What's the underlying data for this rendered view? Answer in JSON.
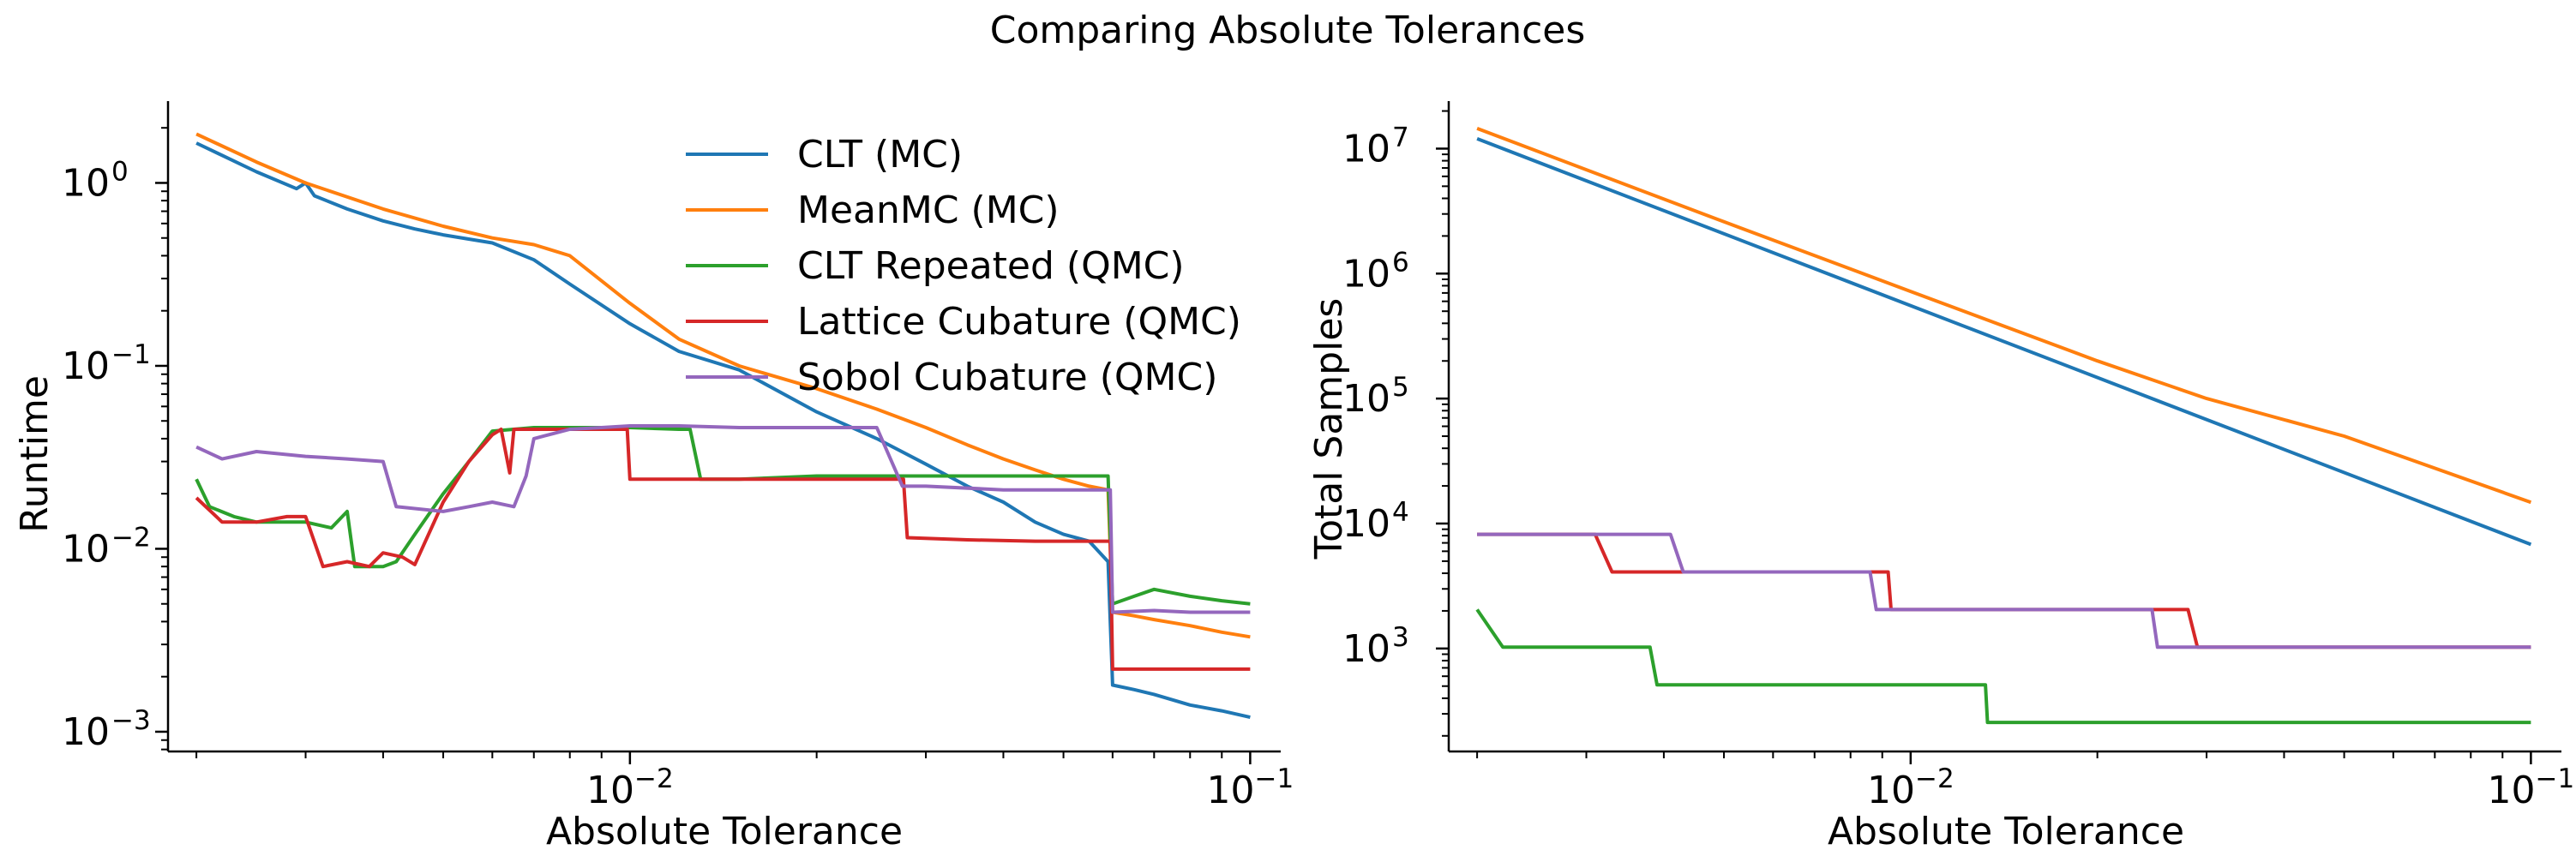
{
  "figure": {
    "title": "Comparing Absolute Tolerances"
  },
  "chart_data": [
    {
      "type": "line",
      "xlabel": "Absolute Tolerance",
      "ylabel": "Runtime",
      "xscale": "log",
      "yscale": "log",
      "xlim": [
        0.0018,
        0.112
      ],
      "ylim": [
        0.00078,
        2.8
      ],
      "xticks": [
        {
          "value": 0.01,
          "base": "10",
          "exp": "−2"
        },
        {
          "value": 0.1,
          "base": "10",
          "exp": "−1"
        }
      ],
      "yticks": [
        {
          "value": 0.001,
          "base": "10",
          "exp": "−3"
        },
        {
          "value": 0.01,
          "base": "10",
          "exp": "−2"
        },
        {
          "value": 0.1,
          "base": "10",
          "exp": "−1"
        },
        {
          "value": 1,
          "base": "10",
          "exp": "0"
        }
      ],
      "legend": "top-center",
      "grid": false,
      "series": [
        {
          "name": "CLT (MC)",
          "color": "#1f77b4",
          "x": [
            0.002,
            0.0025,
            0.0029,
            0.003,
            0.0031,
            0.0035,
            0.004,
            0.0045,
            0.005,
            0.006,
            0.007,
            0.008,
            0.01,
            0.012,
            0.015,
            0.02,
            0.025,
            0.03,
            0.035,
            0.04,
            0.045,
            0.05,
            0.055,
            0.059,
            0.06,
            0.065,
            0.07,
            0.08,
            0.09,
            0.1
          ],
          "y": [
            1.65,
            1.15,
            0.93,
            1.0,
            0.85,
            0.72,
            0.62,
            0.56,
            0.52,
            0.47,
            0.38,
            0.28,
            0.17,
            0.12,
            0.095,
            0.056,
            0.04,
            0.029,
            0.022,
            0.018,
            0.014,
            0.012,
            0.011,
            0.0085,
            0.0018,
            0.0017,
            0.0016,
            0.0014,
            0.0013,
            0.0012
          ]
        },
        {
          "name": "MeanMC (MC)",
          "color": "#ff7f0e",
          "x": [
            0.002,
            0.0025,
            0.003,
            0.004,
            0.005,
            0.006,
            0.007,
            0.008,
            0.01,
            0.012,
            0.015,
            0.02,
            0.025,
            0.03,
            0.035,
            0.04,
            0.045,
            0.05,
            0.055,
            0.059,
            0.06,
            0.065,
            0.07,
            0.08,
            0.09,
            0.1
          ],
          "y": [
            1.85,
            1.3,
            1.0,
            0.72,
            0.58,
            0.5,
            0.46,
            0.4,
            0.22,
            0.14,
            0.1,
            0.075,
            0.058,
            0.046,
            0.037,
            0.031,
            0.027,
            0.024,
            0.022,
            0.021,
            0.0045,
            0.0043,
            0.0041,
            0.0038,
            0.0035,
            0.0033
          ]
        },
        {
          "name": "CLT Repeated (QMC)",
          "color": "#2ca02c",
          "x": [
            0.002,
            0.0021,
            0.0023,
            0.0025,
            0.003,
            0.0033,
            0.0035,
            0.0036,
            0.004,
            0.0042,
            0.0045,
            0.005,
            0.0055,
            0.006,
            0.007,
            0.008,
            0.01,
            0.012,
            0.0125,
            0.013,
            0.015,
            0.02,
            0.025,
            0.03,
            0.04,
            0.05,
            0.059,
            0.06,
            0.065,
            0.07,
            0.08,
            0.09,
            0.1
          ],
          "y": [
            0.024,
            0.017,
            0.015,
            0.014,
            0.014,
            0.013,
            0.016,
            0.008,
            0.008,
            0.0085,
            0.012,
            0.02,
            0.03,
            0.044,
            0.046,
            0.046,
            0.046,
            0.045,
            0.045,
            0.024,
            0.024,
            0.025,
            0.025,
            0.025,
            0.025,
            0.025,
            0.025,
            0.005,
            0.0055,
            0.006,
            0.0055,
            0.0052,
            0.005
          ]
        },
        {
          "name": "Lattice Cubature (QMC)",
          "color": "#d62728",
          "x": [
            0.002,
            0.0022,
            0.0025,
            0.0028,
            0.003,
            0.0032,
            0.0035,
            0.0038,
            0.004,
            0.0043,
            0.0045,
            0.005,
            0.0055,
            0.006,
            0.0062,
            0.0064,
            0.0065,
            0.007,
            0.008,
            0.0099,
            0.01,
            0.015,
            0.02,
            0.025,
            0.0276,
            0.028,
            0.035,
            0.045,
            0.055,
            0.0595,
            0.06,
            0.07,
            0.08,
            0.1
          ],
          "y": [
            0.019,
            0.014,
            0.014,
            0.015,
            0.015,
            0.008,
            0.0085,
            0.008,
            0.0095,
            0.009,
            0.0082,
            0.018,
            0.03,
            0.042,
            0.045,
            0.026,
            0.045,
            0.045,
            0.045,
            0.045,
            0.024,
            0.024,
            0.024,
            0.024,
            0.024,
            0.0115,
            0.0112,
            0.011,
            0.011,
            0.011,
            0.0022,
            0.0022,
            0.0022,
            0.0022
          ]
        },
        {
          "name": "Sobol Cubature (QMC)",
          "color": "#9467bd",
          "x": [
            0.002,
            0.0022,
            0.0025,
            0.003,
            0.0035,
            0.004,
            0.0042,
            0.005,
            0.0055,
            0.006,
            0.0065,
            0.0068,
            0.007,
            0.008,
            0.009,
            0.01,
            0.012,
            0.015,
            0.02,
            0.025,
            0.0275,
            0.03,
            0.04,
            0.05,
            0.0595,
            0.06,
            0.07,
            0.08,
            0.09,
            0.1
          ],
          "y": [
            0.036,
            0.031,
            0.034,
            0.032,
            0.031,
            0.03,
            0.017,
            0.016,
            0.017,
            0.018,
            0.017,
            0.025,
            0.04,
            0.045,
            0.046,
            0.047,
            0.047,
            0.046,
            0.046,
            0.046,
            0.022,
            0.022,
            0.021,
            0.021,
            0.021,
            0.0045,
            0.0046,
            0.0045,
            0.0045,
            0.0045
          ]
        }
      ]
    },
    {
      "type": "line",
      "xlabel": "Absolute Tolerance",
      "ylabel": "Total Samples",
      "xscale": "log",
      "yscale": "log",
      "xlim": [
        0.0018,
        0.112
      ],
      "ylim": [
        150,
        24000000
      ],
      "xticks": [
        {
          "value": 0.01,
          "base": "10",
          "exp": "−2"
        },
        {
          "value": 0.1,
          "base": "10",
          "exp": "−1"
        }
      ],
      "yticks": [
        {
          "value": 1000,
          "base": "10",
          "exp": "3"
        },
        {
          "value": 10000,
          "base": "10",
          "exp": "4"
        },
        {
          "value": 100000,
          "base": "10",
          "exp": "5"
        },
        {
          "value": 1000000,
          "base": "10",
          "exp": "6"
        },
        {
          "value": 10000000,
          "base": "10",
          "exp": "7"
        }
      ],
      "grid": false,
      "series": [
        {
          "color": "#1f77b4",
          "x": [
            0.002,
            0.1
          ],
          "y": [
            12000000,
            6800
          ]
        },
        {
          "color": "#ff7f0e",
          "x": [
            0.002,
            0.005,
            0.01,
            0.02,
            0.03,
            0.05,
            0.1
          ],
          "y": [
            14500000,
            2600000,
            720000,
            200000,
            100000,
            50000,
            14800
          ]
        },
        {
          "color": "#2ca02c",
          "x": [
            0.002,
            0.0022,
            0.0038,
            0.0039,
            0.0132,
            0.0133,
            0.1
          ],
          "y": [
            2048,
            1024,
            1024,
            512,
            512,
            256,
            256
          ]
        },
        {
          "color": "#d62728",
          "x": [
            0.002,
            0.0031,
            0.0033,
            0.0092,
            0.0093,
            0.028,
            0.029,
            0.1
          ],
          "y": [
            8192,
            8192,
            4096,
            4096,
            2048,
            2048,
            1024,
            1024
          ]
        },
        {
          "color": "#9467bd",
          "x": [
            0.002,
            0.0041,
            0.0043,
            0.0086,
            0.0088,
            0.0245,
            0.025,
            0.1
          ],
          "y": [
            8192,
            8192,
            4096,
            4096,
            2048,
            2048,
            1024,
            1024
          ]
        }
      ]
    }
  ]
}
